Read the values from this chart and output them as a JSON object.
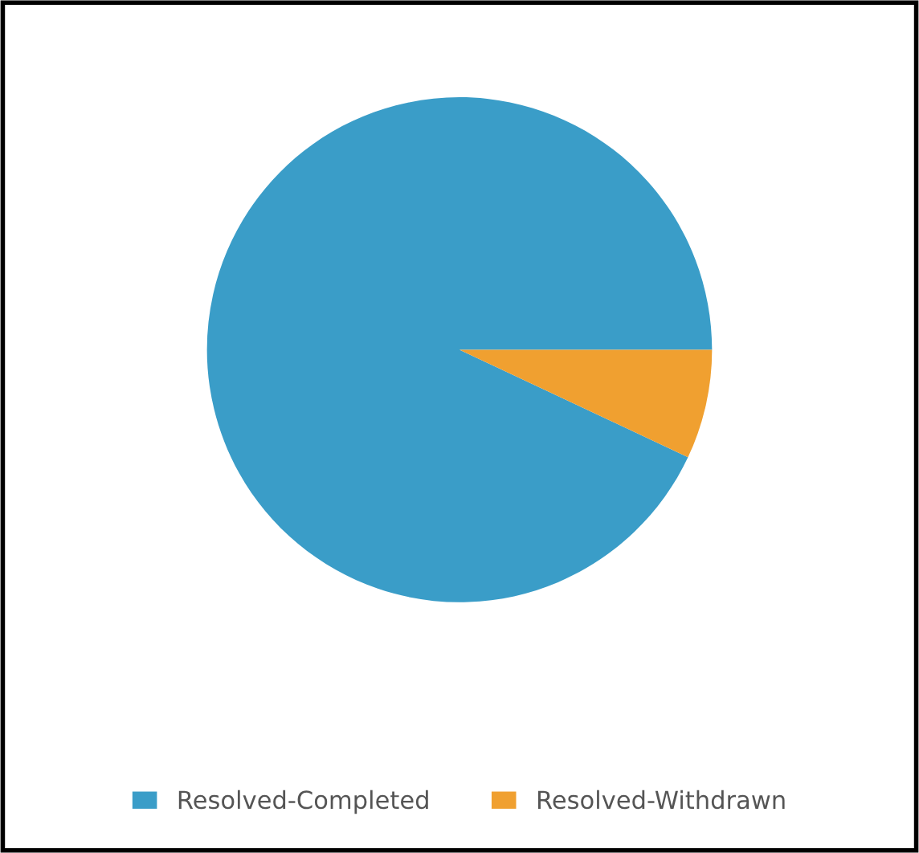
{
  "chart_data": {
    "type": "pie",
    "categories": [
      "Resolved-Completed",
      "Resolved-Withdrawn"
    ],
    "values": [
      93,
      7
    ],
    "colors": [
      "#3a9dc8",
      "#f0a030"
    ],
    "legend": "bottom"
  }
}
